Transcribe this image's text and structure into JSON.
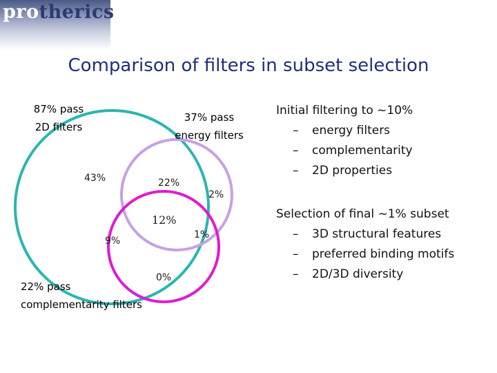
{
  "logo": {
    "text_part1": "pro",
    "text_part2": "therics"
  },
  "title": "Comparison of filters in subset selection",
  "diagram": {
    "sets": [
      {
        "label_line1": "87% pass",
        "label_line2": "2D filters",
        "color": "#2ab5b0"
      },
      {
        "label_line1": "37% pass",
        "label_line2": "energy filters",
        "color": "#c7a0e4"
      },
      {
        "label_line1": "22% pass",
        "label_line2": "complementarity filters",
        "color": "#e01ad2"
      }
    ],
    "regions": {
      "only_2d": "43%",
      "2d_energy": "22%",
      "only_energy": "2%",
      "all_three": "12%",
      "energy_comp": "1%",
      "2d_comp": "9%",
      "only_comp": "0%"
    }
  },
  "notes": {
    "initial_heading": "Initial filtering to ~10%",
    "initial_items": [
      "energy filters",
      "complementarity",
      "2D properties"
    ],
    "final_heading": "Selection of final ~1% subset",
    "final_items": [
      "3D structural features",
      "preferred binding motifs",
      "2D/3D diversity"
    ],
    "bullet": "–"
  }
}
